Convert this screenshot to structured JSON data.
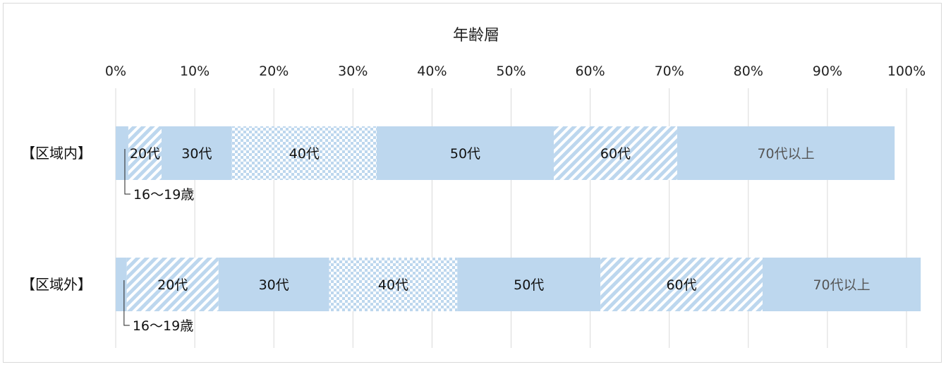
{
  "chart_data": {
    "type": "bar",
    "orientation": "horizontal",
    "stacked": "100%",
    "title": "年齢層",
    "x_ticks": [
      "0%",
      "10%",
      "20%",
      "30%",
      "40%",
      "50%",
      "60%",
      "70%",
      "80%",
      "90%",
      "100%"
    ],
    "xlim": [
      0,
      100
    ],
    "grid": true,
    "categories": [
      "【区域内】",
      "【区域外】"
    ],
    "series": [
      {
        "name": "16〜19歳",
        "values": [
          1.6,
          1.4
        ],
        "pattern": "solid"
      },
      {
        "name": "20代",
        "values": [
          4.2,
          11.6
        ],
        "pattern": "diagonal"
      },
      {
        "name": "30代",
        "values": [
          8.9,
          14.0
        ],
        "pattern": "solid"
      },
      {
        "name": "40代",
        "values": [
          18.3,
          16.2
        ],
        "pattern": "checker"
      },
      {
        "name": "50代",
        "values": [
          22.4,
          18.1
        ],
        "pattern": "solid"
      },
      {
        "name": "60代",
        "values": [
          15.6,
          20.5
        ],
        "pattern": "diagonal"
      },
      {
        "name": "70代以上",
        "values": [
          27.5,
          20.0
        ],
        "pattern": "solid"
      }
    ],
    "segment_labels": [
      [
        "",
        "20代",
        "30代",
        "40代",
        "50代",
        "60代",
        "70代以上"
      ],
      [
        "",
        "20代",
        "30代",
        "40代",
        "50代",
        "60代",
        "70代以上"
      ]
    ],
    "callouts": [
      "16〜19歳",
      "16〜19歳"
    ],
    "colors": {
      "fill": "#bdd7ee",
      "pattern": "#ffffff",
      "grid": "#d9d9d9",
      "callout_line": "#222222"
    }
  }
}
